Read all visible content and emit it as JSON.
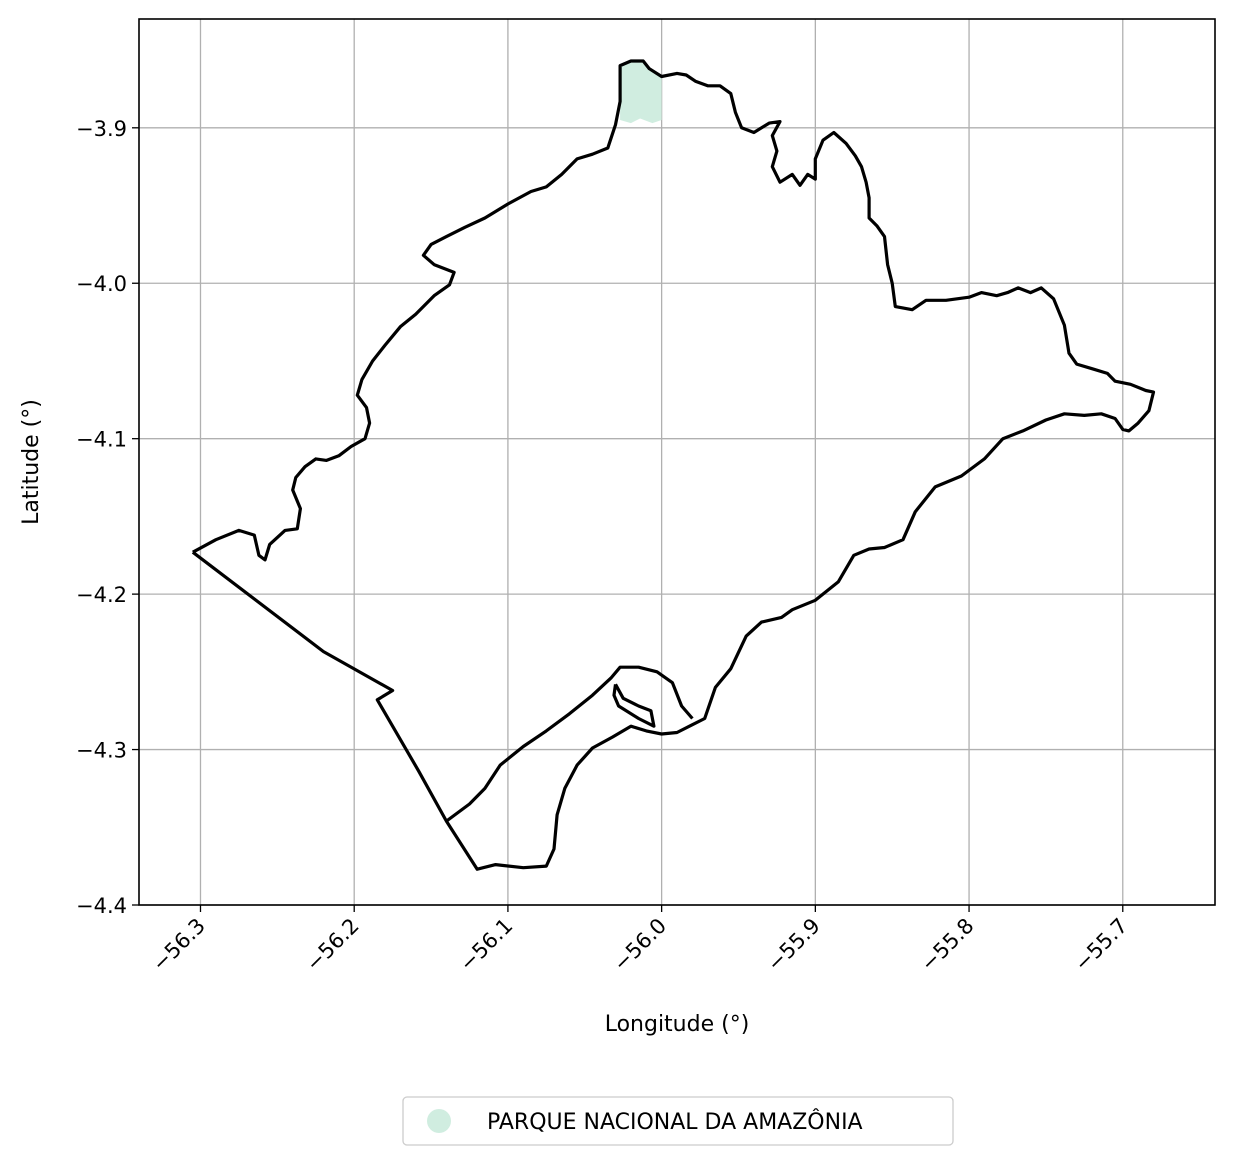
{
  "chart_data": {
    "type": "map",
    "xlabel": "Longitude (°)",
    "ylabel": "Latitude (°)",
    "xlim": [
      -56.34,
      -55.64
    ],
    "ylim": [
      -4.4,
      -3.83
    ],
    "xticks": [
      -56.3,
      -56.2,
      -56.1,
      -56.0,
      -55.9,
      -55.8,
      -55.7
    ],
    "xtick_labels": [
      "−56.3",
      "−56.2",
      "−56.1",
      "−56.0",
      "−55.9",
      "−55.8",
      "−55.7"
    ],
    "yticks": [
      -3.9,
      -4.0,
      -4.1,
      -4.2,
      -4.3,
      -4.4
    ],
    "ytick_labels": [
      "−3.9",
      "−4.0",
      "−4.1",
      "−4.2",
      "−4.3",
      "−4.4"
    ],
    "grid": true,
    "legend": {
      "placement": "bottom-center",
      "entries": [
        {
          "label": "PARQUE NACIONAL DA AMAZÔNIA",
          "color": "#d0ede0",
          "marker": "circle"
        }
      ]
    },
    "colors": {
      "boundary": "#000000",
      "fill": "#d0ede0",
      "grid": "#b0b0b0"
    },
    "boundary": [
      [
        -56.305,
        -4.173
      ],
      [
        -56.29,
        -4.165
      ],
      [
        -56.275,
        -4.159
      ],
      [
        -56.265,
        -4.162
      ],
      [
        -56.262,
        -4.175
      ],
      [
        -56.258,
        -4.178
      ],
      [
        -56.255,
        -4.168
      ],
      [
        -56.245,
        -4.159
      ],
      [
        -56.237,
        -4.158
      ],
      [
        -56.235,
        -4.145
      ],
      [
        -56.24,
        -4.133
      ],
      [
        -56.238,
        -4.125
      ],
      [
        -56.232,
        -4.118
      ],
      [
        -56.225,
        -4.113
      ],
      [
        -56.218,
        -4.114
      ],
      [
        -56.21,
        -4.111
      ],
      [
        -56.202,
        -4.105
      ],
      [
        -56.193,
        -4.1
      ],
      [
        -56.19,
        -4.09
      ],
      [
        -56.192,
        -4.08
      ],
      [
        -56.198,
        -4.072
      ],
      [
        -56.195,
        -4.062
      ],
      [
        -56.188,
        -4.05
      ],
      [
        -56.18,
        -4.04
      ],
      [
        -56.17,
        -4.028
      ],
      [
        -56.16,
        -4.02
      ],
      [
        -56.148,
        -4.008
      ],
      [
        -56.138,
        -4.001
      ],
      [
        -56.135,
        -3.993
      ],
      [
        -56.148,
        -3.988
      ],
      [
        -56.155,
        -3.982
      ],
      [
        -56.15,
        -3.975
      ],
      [
        -56.14,
        -3.97
      ],
      [
        -56.128,
        -3.964
      ],
      [
        -56.115,
        -3.958
      ],
      [
        -56.1,
        -3.949
      ],
      [
        -56.085,
        -3.941
      ],
      [
        -56.075,
        -3.938
      ],
      [
        -56.065,
        -3.93
      ],
      [
        -56.055,
        -3.92
      ],
      [
        -56.045,
        -3.917
      ],
      [
        -56.035,
        -3.913
      ],
      [
        -56.03,
        -3.898
      ],
      [
        -56.027,
        -3.883
      ],
      [
        -56.027,
        -3.86
      ],
      [
        -56.02,
        -3.857
      ],
      [
        -56.012,
        -3.857
      ],
      [
        -56.008,
        -3.862
      ],
      [
        -56.0,
        -3.867
      ],
      [
        -55.99,
        -3.865
      ],
      [
        -55.984,
        -3.866
      ],
      [
        -55.978,
        -3.87
      ],
      [
        -55.97,
        -3.873
      ],
      [
        -55.962,
        -3.873
      ],
      [
        -55.955,
        -3.878
      ],
      [
        -55.952,
        -3.89
      ],
      [
        -55.948,
        -3.9
      ],
      [
        -55.94,
        -3.903
      ],
      [
        -55.93,
        -3.897
      ],
      [
        -55.923,
        -3.896
      ],
      [
        -55.928,
        -3.905
      ],
      [
        -55.925,
        -3.915
      ],
      [
        -55.928,
        -3.925
      ],
      [
        -55.923,
        -3.935
      ],
      [
        -55.915,
        -3.93
      ],
      [
        -55.91,
        -3.937
      ],
      [
        -55.905,
        -3.93
      ],
      [
        -55.9,
        -3.933
      ],
      [
        -55.9,
        -3.92
      ],
      [
        -55.895,
        -3.908
      ],
      [
        -55.888,
        -3.903
      ],
      [
        -55.88,
        -3.91
      ],
      [
        -55.874,
        -3.918
      ],
      [
        -55.87,
        -3.925
      ],
      [
        -55.867,
        -3.935
      ],
      [
        -55.865,
        -3.945
      ],
      [
        -55.865,
        -3.958
      ],
      [
        -55.86,
        -3.963
      ],
      [
        -55.855,
        -3.97
      ],
      [
        -55.853,
        -3.988
      ],
      [
        -55.85,
        -4.0
      ],
      [
        -55.848,
        -4.015
      ],
      [
        -55.837,
        -4.017
      ],
      [
        -55.828,
        -4.011
      ],
      [
        -55.815,
        -4.011
      ],
      [
        -55.8,
        -4.009
      ],
      [
        -55.792,
        -4.006
      ],
      [
        -55.782,
        -4.008
      ],
      [
        -55.775,
        -4.006
      ],
      [
        -55.768,
        -4.003
      ],
      [
        -55.76,
        -4.006
      ],
      [
        -55.753,
        -4.003
      ],
      [
        -55.745,
        -4.01
      ],
      [
        -55.738,
        -4.027
      ],
      [
        -55.735,
        -4.045
      ],
      [
        -55.73,
        -4.052
      ],
      [
        -55.72,
        -4.055
      ],
      [
        -55.71,
        -4.058
      ],
      [
        -55.705,
        -4.063
      ],
      [
        -55.695,
        -4.065
      ],
      [
        -55.685,
        -4.069
      ],
      [
        -55.68,
        -4.07
      ],
      [
        -55.683,
        -4.082
      ],
      [
        -55.69,
        -4.09
      ],
      [
        -55.696,
        -4.095
      ],
      [
        -55.7,
        -4.094
      ],
      [
        -55.705,
        -4.087
      ],
      [
        -55.714,
        -4.084
      ],
      [
        -55.725,
        -4.085
      ],
      [
        -55.738,
        -4.084
      ],
      [
        -55.75,
        -4.088
      ],
      [
        -55.765,
        -4.095
      ],
      [
        -55.778,
        -4.1
      ],
      [
        -55.79,
        -4.113
      ],
      [
        -55.805,
        -4.124
      ],
      [
        -55.822,
        -4.131
      ],
      [
        -55.835,
        -4.147
      ],
      [
        -55.843,
        -4.165
      ],
      [
        -55.855,
        -4.17
      ],
      [
        -55.865,
        -4.171
      ],
      [
        -55.875,
        -4.175
      ],
      [
        -55.885,
        -4.192
      ],
      [
        -55.9,
        -4.204
      ],
      [
        -55.915,
        -4.21
      ],
      [
        -55.922,
        -4.215
      ],
      [
        -55.935,
        -4.218
      ],
      [
        -55.945,
        -4.227
      ],
      [
        -55.955,
        -4.248
      ],
      [
        -55.965,
        -4.26
      ],
      [
        -55.972,
        -4.28
      ],
      [
        -55.98,
        -4.284
      ],
      [
        -55.99,
        -4.289
      ],
      [
        -56.0,
        -4.29
      ],
      [
        -56.01,
        -4.288
      ],
      [
        -56.02,
        -4.285
      ],
      [
        -56.032,
        -4.292
      ],
      [
        -56.045,
        -4.299
      ],
      [
        -56.055,
        -4.31
      ],
      [
        -56.063,
        -4.325
      ],
      [
        -56.068,
        -4.342
      ],
      [
        -56.07,
        -4.364
      ],
      [
        -56.075,
        -4.375
      ],
      [
        -56.09,
        -4.376
      ],
      [
        -56.108,
        -4.374
      ],
      [
        -56.12,
        -4.377
      ],
      [
        -56.14,
        -4.346
      ],
      [
        -56.158,
        -4.314
      ],
      [
        -56.185,
        -4.268
      ],
      [
        -56.175,
        -4.262
      ],
      [
        -56.22,
        -4.237
      ],
      [
        -56.305,
        -4.173
      ]
    ],
    "inner_boundary": [
      [
        -56.14,
        -4.346
      ],
      [
        -56.125,
        -4.335
      ],
      [
        -56.115,
        -4.325
      ],
      [
        -56.105,
        -4.31
      ],
      [
        -56.09,
        -4.298
      ],
      [
        -56.075,
        -4.288
      ],
      [
        -56.06,
        -4.277
      ],
      [
        -56.045,
        -4.265
      ],
      [
        -56.033,
        -4.254
      ],
      [
        -56.027,
        -4.247
      ],
      [
        -56.015,
        -4.247
      ],
      [
        -56.003,
        -4.25
      ],
      [
        -55.993,
        -4.257
      ],
      [
        -55.987,
        -4.272
      ],
      [
        -55.98,
        -4.28
      ]
    ],
    "bay_loop": [
      [
        -56.03,
        -4.258
      ],
      [
        -56.025,
        -4.267
      ],
      [
        -56.015,
        -4.272
      ],
      [
        -56.007,
        -4.275
      ],
      [
        -56.005,
        -4.285
      ],
      [
        -56.015,
        -4.28
      ],
      [
        -56.028,
        -4.272
      ],
      [
        -56.031,
        -4.265
      ],
      [
        -56.03,
        -4.258
      ]
    ],
    "park_polygon": [
      [
        -56.027,
        -3.86
      ],
      [
        -56.02,
        -3.857
      ],
      [
        -56.012,
        -3.857
      ],
      [
        -56.008,
        -3.862
      ],
      [
        -56.0,
        -3.866
      ],
      [
        -56.0,
        -3.895
      ],
      [
        -56.006,
        -3.897
      ],
      [
        -56.014,
        -3.894
      ],
      [
        -56.02,
        -3.897
      ],
      [
        -56.027,
        -3.895
      ]
    ]
  }
}
